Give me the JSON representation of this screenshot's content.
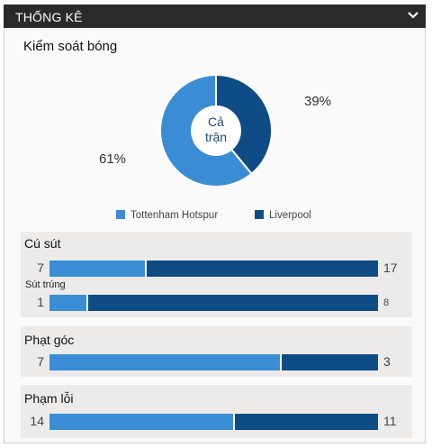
{
  "header": {
    "title": "THỐNG KÊ"
  },
  "possession": {
    "title": "Kiểm soát bóng",
    "center_label_line1": "Cả",
    "center_label_line2": "trận",
    "home_pct": 61,
    "away_pct": 39,
    "home_pct_label": "61%",
    "away_pct_label": "39%"
  },
  "legend": {
    "home": "Tottenham Hotspur",
    "away": "Liverpool"
  },
  "colors": {
    "home": "#3a8dd4",
    "away": "#0f4c85",
    "header_bg": "#2a2a2a"
  },
  "stats": {
    "shots": {
      "label": "Cú sút",
      "home": 7,
      "away": 17
    },
    "shots_on_target": {
      "label": "Sút trúng",
      "home": 1,
      "away": 8
    },
    "corners": {
      "label": "Phạt góc",
      "home": 7,
      "away": 3
    },
    "fouls": {
      "label": "Phạm lỗi",
      "home": 14,
      "away": 11
    }
  }
}
